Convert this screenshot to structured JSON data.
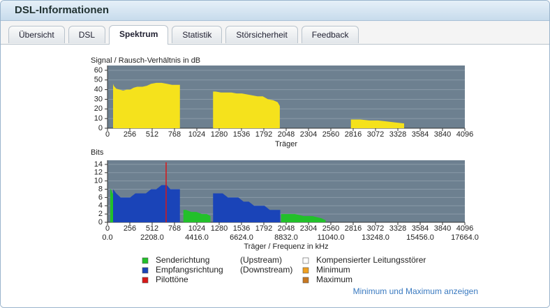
{
  "header": {
    "title": "DSL-Informationen"
  },
  "tabs": {
    "items": [
      "Übersicht",
      "DSL",
      "Spektrum",
      "Statistik",
      "Störsicherheit",
      "Feedback"
    ],
    "active": 2
  },
  "chart_data": [
    {
      "type": "area",
      "title": "Signal / Rausch-Verhältnis in dB",
      "x_label": "Träger",
      "color": "#f5e21c",
      "background": "#6d8090",
      "grid": true,
      "x": [
        64,
        72,
        100,
        140,
        180,
        220,
        260,
        300,
        340,
        400,
        450,
        500,
        560,
        620,
        680,
        740,
        790,
        830,
        1000,
        1210,
        1240,
        1300,
        1360,
        1420,
        1480,
        1540,
        1600,
        1660,
        1720,
        1780,
        1840,
        1900,
        1950,
        1975,
        2400,
        2790,
        2900,
        3000,
        3100,
        3200,
        3300,
        3400
      ],
      "values": [
        46,
        44,
        41,
        40,
        39,
        40,
        40,
        42,
        43,
        43,
        44,
        46,
        47,
        47,
        46,
        45,
        45,
        45,
        null,
        38,
        38,
        37,
        37,
        37,
        36,
        36,
        35,
        34,
        33,
        33,
        30,
        29,
        27,
        23,
        null,
        9,
        9,
        8,
        8,
        7,
        6,
        5
      ],
      "xlim": [
        0,
        4096
      ],
      "xticks": [
        0,
        256,
        512,
        768,
        1024,
        1280,
        1536,
        1792,
        2048,
        2304,
        2560,
        2816,
        3072,
        3328,
        3584,
        3840,
        4096
      ],
      "ylim": [
        0,
        65
      ],
      "yticks": [
        0,
        10,
        20,
        30,
        40,
        50,
        60
      ]
    },
    {
      "type": "area",
      "title": "Bits",
      "x_label": "Träger / Frequenz in kHz",
      "background": "#6d8090",
      "grid": true,
      "series": [
        {
          "name": "Senderichtung",
          "direction": "(Upstream)",
          "color": "#22c02a",
          "style": "area",
          "x": [
            32,
            40,
            56,
            64,
            800,
            870,
            900,
            960,
            1020,
            1080,
            1140,
            1180,
            1500,
            1990,
            2050,
            2150,
            2250,
            2350,
            2450,
            2500
          ],
          "values": [
            8,
            8,
            7,
            7,
            null,
            3,
            3,
            2.5,
            2.5,
            2,
            2,
            1.5,
            null,
            2,
            2,
            2,
            1.5,
            1.5,
            1,
            0.5
          ]
        },
        {
          "name": "Empfangsrichtung",
          "direction": "(Downstream)",
          "color": "#1a44b8",
          "style": "area",
          "x": [
            64,
            100,
            150,
            200,
            260,
            320,
            380,
            440,
            500,
            560,
            620,
            680,
            720,
            760,
            800,
            830,
            1000,
            1210,
            1260,
            1320,
            1380,
            1440,
            1500,
            1560,
            1620,
            1680,
            1740,
            1800,
            1860,
            1920,
            1980
          ],
          "values": [
            8,
            7,
            6,
            6,
            6,
            7,
            7,
            7,
            8,
            8,
            9,
            9,
            8,
            8,
            8,
            8,
            null,
            7,
            7,
            7,
            6,
            6,
            6,
            5,
            5,
            4,
            4,
            4,
            3,
            3,
            3
          ]
        },
        {
          "name": "Pilottöne",
          "color": "#d81818",
          "style": "stem",
          "x": [
            672
          ],
          "values": [
            14.5
          ]
        }
      ],
      "xlim": [
        0,
        4096
      ],
      "xticks": [
        0,
        256,
        512,
        768,
        1024,
        1280,
        1536,
        1792,
        2048,
        2304,
        2560,
        2816,
        3072,
        3328,
        3584,
        3840,
        4096
      ],
      "x2lim": [
        0,
        17664
      ],
      "x2ticks": [
        {
          "value": 0,
          "label": "0.0"
        },
        {
          "value": 2208,
          "label": "2208.0"
        },
        {
          "value": 4416,
          "label": "4416.0"
        },
        {
          "value": 6624,
          "label": "6624.0"
        },
        {
          "value": 8832,
          "label": "8832.0"
        },
        {
          "value": 11040,
          "label": "11040.0"
        },
        {
          "value": 13248,
          "label": "13248.0"
        },
        {
          "value": 15456,
          "label": "15456.0"
        },
        {
          "value": 17664,
          "label": "17664.0"
        }
      ],
      "ylim": [
        0,
        15
      ],
      "yticks": [
        0,
        2,
        4,
        6,
        8,
        10,
        12,
        14
      ]
    }
  ],
  "legend_extra": [
    {
      "name": "Kompensierter Leitungsstörer",
      "color": "#ffffff"
    },
    {
      "name": "Minimum",
      "color": "#f0a020"
    },
    {
      "name": "Maximum",
      "color": "#c87820"
    }
  ],
  "link": "Minimum und Maximum anzeigen"
}
